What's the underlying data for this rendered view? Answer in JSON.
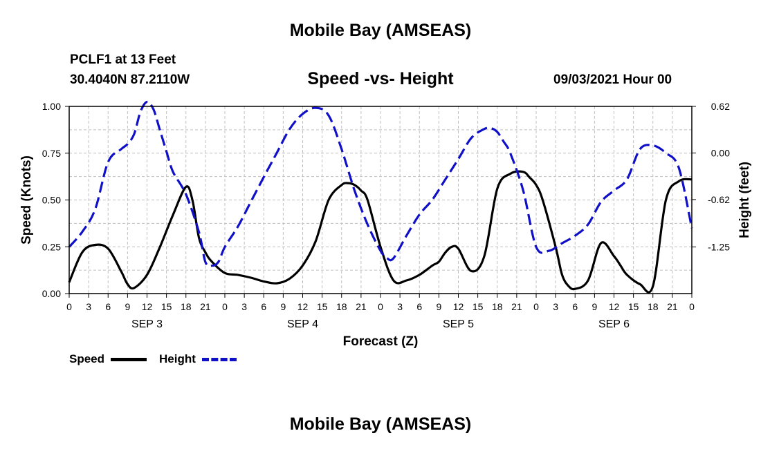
{
  "header": {
    "title": "Mobile Bay (AMSEAS)",
    "footer_title": "Mobile Bay (AMSEAS)",
    "station": "PCLF1 at 13 Feet",
    "coords": "30.4040N  87.2110W",
    "plot_title": "Speed -vs- Height",
    "run_time": "09/03/2021 Hour 00"
  },
  "legend": {
    "speed_label": "Speed",
    "height_label": "Height"
  },
  "colors": {
    "speed": "#000000",
    "height": "#1010c8",
    "grid": "#c0c0c0"
  },
  "chart_data": {
    "type": "line",
    "title": "Speed -vs- Height",
    "xlabel": "Forecast (Z)",
    "ylabel": "Speed (Knots)",
    "y2label": "Height (feet)",
    "xlim": [
      0,
      96
    ],
    "ylim": [
      0,
      1.0
    ],
    "y2lim": [
      -1.87,
      0.62
    ],
    "x_tick_labels": [
      "0",
      "3",
      "6",
      "9",
      "12",
      "15",
      "18",
      "21",
      "0",
      "3",
      "6",
      "9",
      "12",
      "15",
      "18",
      "21",
      "0",
      "3",
      "6",
      "9",
      "12",
      "15",
      "18",
      "21",
      "0",
      "3",
      "6",
      "9",
      "12",
      "15",
      "18",
      "21",
      "0"
    ],
    "day_labels": [
      {
        "label": "SEP 3",
        "hour": 12
      },
      {
        "label": "SEP 4",
        "hour": 36
      },
      {
        "label": "SEP 5",
        "hour": 60
      },
      {
        "label": "SEP 6",
        "hour": 84
      }
    ],
    "y_ticks": [
      "0.00",
      "0.25",
      "0.50",
      "0.75",
      "1.00"
    ],
    "y_tick_values": [
      0,
      0.25,
      0.5,
      0.75,
      1.0
    ],
    "y2_ticks": [
      "-1.25",
      "-0.62",
      "0.00",
      "0.62"
    ],
    "y2_tick_values": [
      -1.25,
      -0.62,
      0.0,
      0.62
    ],
    "series": [
      {
        "name": "Speed",
        "axis": "left",
        "style": "solid",
        "x": [
          0,
          2,
          4,
          6,
          8,
          9,
          10,
          12,
          14,
          16,
          18,
          19,
          20,
          21,
          22,
          24,
          26,
          28,
          30,
          32,
          34,
          36,
          38,
          40,
          42,
          43,
          44,
          45,
          46,
          48,
          50,
          52,
          54,
          56,
          57,
          58,
          59,
          60,
          62,
          64,
          66,
          68,
          70,
          71,
          72,
          73,
          75,
          76,
          77,
          78,
          80,
          82,
          84,
          85,
          86,
          88,
          90,
          92,
          94,
          96
        ],
        "values": [
          0.06,
          0.22,
          0.26,
          0.24,
          0.12,
          0.05,
          0.03,
          0.1,
          0.25,
          0.42,
          0.57,
          0.5,
          0.3,
          0.22,
          0.17,
          0.11,
          0.1,
          0.085,
          0.065,
          0.055,
          0.08,
          0.15,
          0.28,
          0.5,
          0.58,
          0.59,
          0.58,
          0.55,
          0.5,
          0.25,
          0.07,
          0.07,
          0.1,
          0.15,
          0.17,
          0.22,
          0.25,
          0.24,
          0.12,
          0.2,
          0.56,
          0.64,
          0.65,
          0.62,
          0.58,
          0.5,
          0.25,
          0.1,
          0.04,
          0.025,
          0.07,
          0.27,
          0.2,
          0.15,
          0.1,
          0.05,
          0.04,
          0.5,
          0.6,
          0.61
        ]
      },
      {
        "name": "Height",
        "axis": "right",
        "style": "dashed",
        "x": [
          0,
          2,
          4,
          6,
          8,
          9,
          10,
          11,
          12,
          13,
          14,
          15,
          16,
          18,
          20,
          21,
          22,
          23,
          24,
          26,
          28,
          30,
          32,
          34,
          36,
          38,
          40,
          42,
          44,
          46,
          48,
          49,
          50,
          52,
          54,
          56,
          58,
          60,
          62,
          64,
          65,
          66,
          67,
          68,
          70,
          72,
          74,
          76,
          78,
          80,
          82,
          84,
          86,
          88,
          90,
          92,
          94,
          96
        ],
        "values": [
          -1.25,
          -1.05,
          -0.75,
          -0.12,
          0.05,
          0.12,
          0.25,
          0.55,
          0.68,
          0.58,
          0.3,
          0.02,
          -0.25,
          -0.55,
          -1.05,
          -1.45,
          -1.5,
          -1.45,
          -1.25,
          -0.98,
          -0.65,
          -0.32,
          0.0,
          0.32,
          0.52,
          0.6,
          0.5,
          0.05,
          -0.5,
          -0.95,
          -1.3,
          -1.4,
          -1.4,
          -1.1,
          -0.82,
          -0.62,
          -0.35,
          -0.08,
          0.2,
          0.32,
          0.33,
          0.28,
          0.15,
          0.0,
          -0.5,
          -1.25,
          -1.3,
          -1.2,
          -1.1,
          -0.95,
          -0.65,
          -0.5,
          -0.35,
          0.05,
          0.1,
          0.0,
          -0.2,
          -1.0
        ]
      }
    ]
  }
}
